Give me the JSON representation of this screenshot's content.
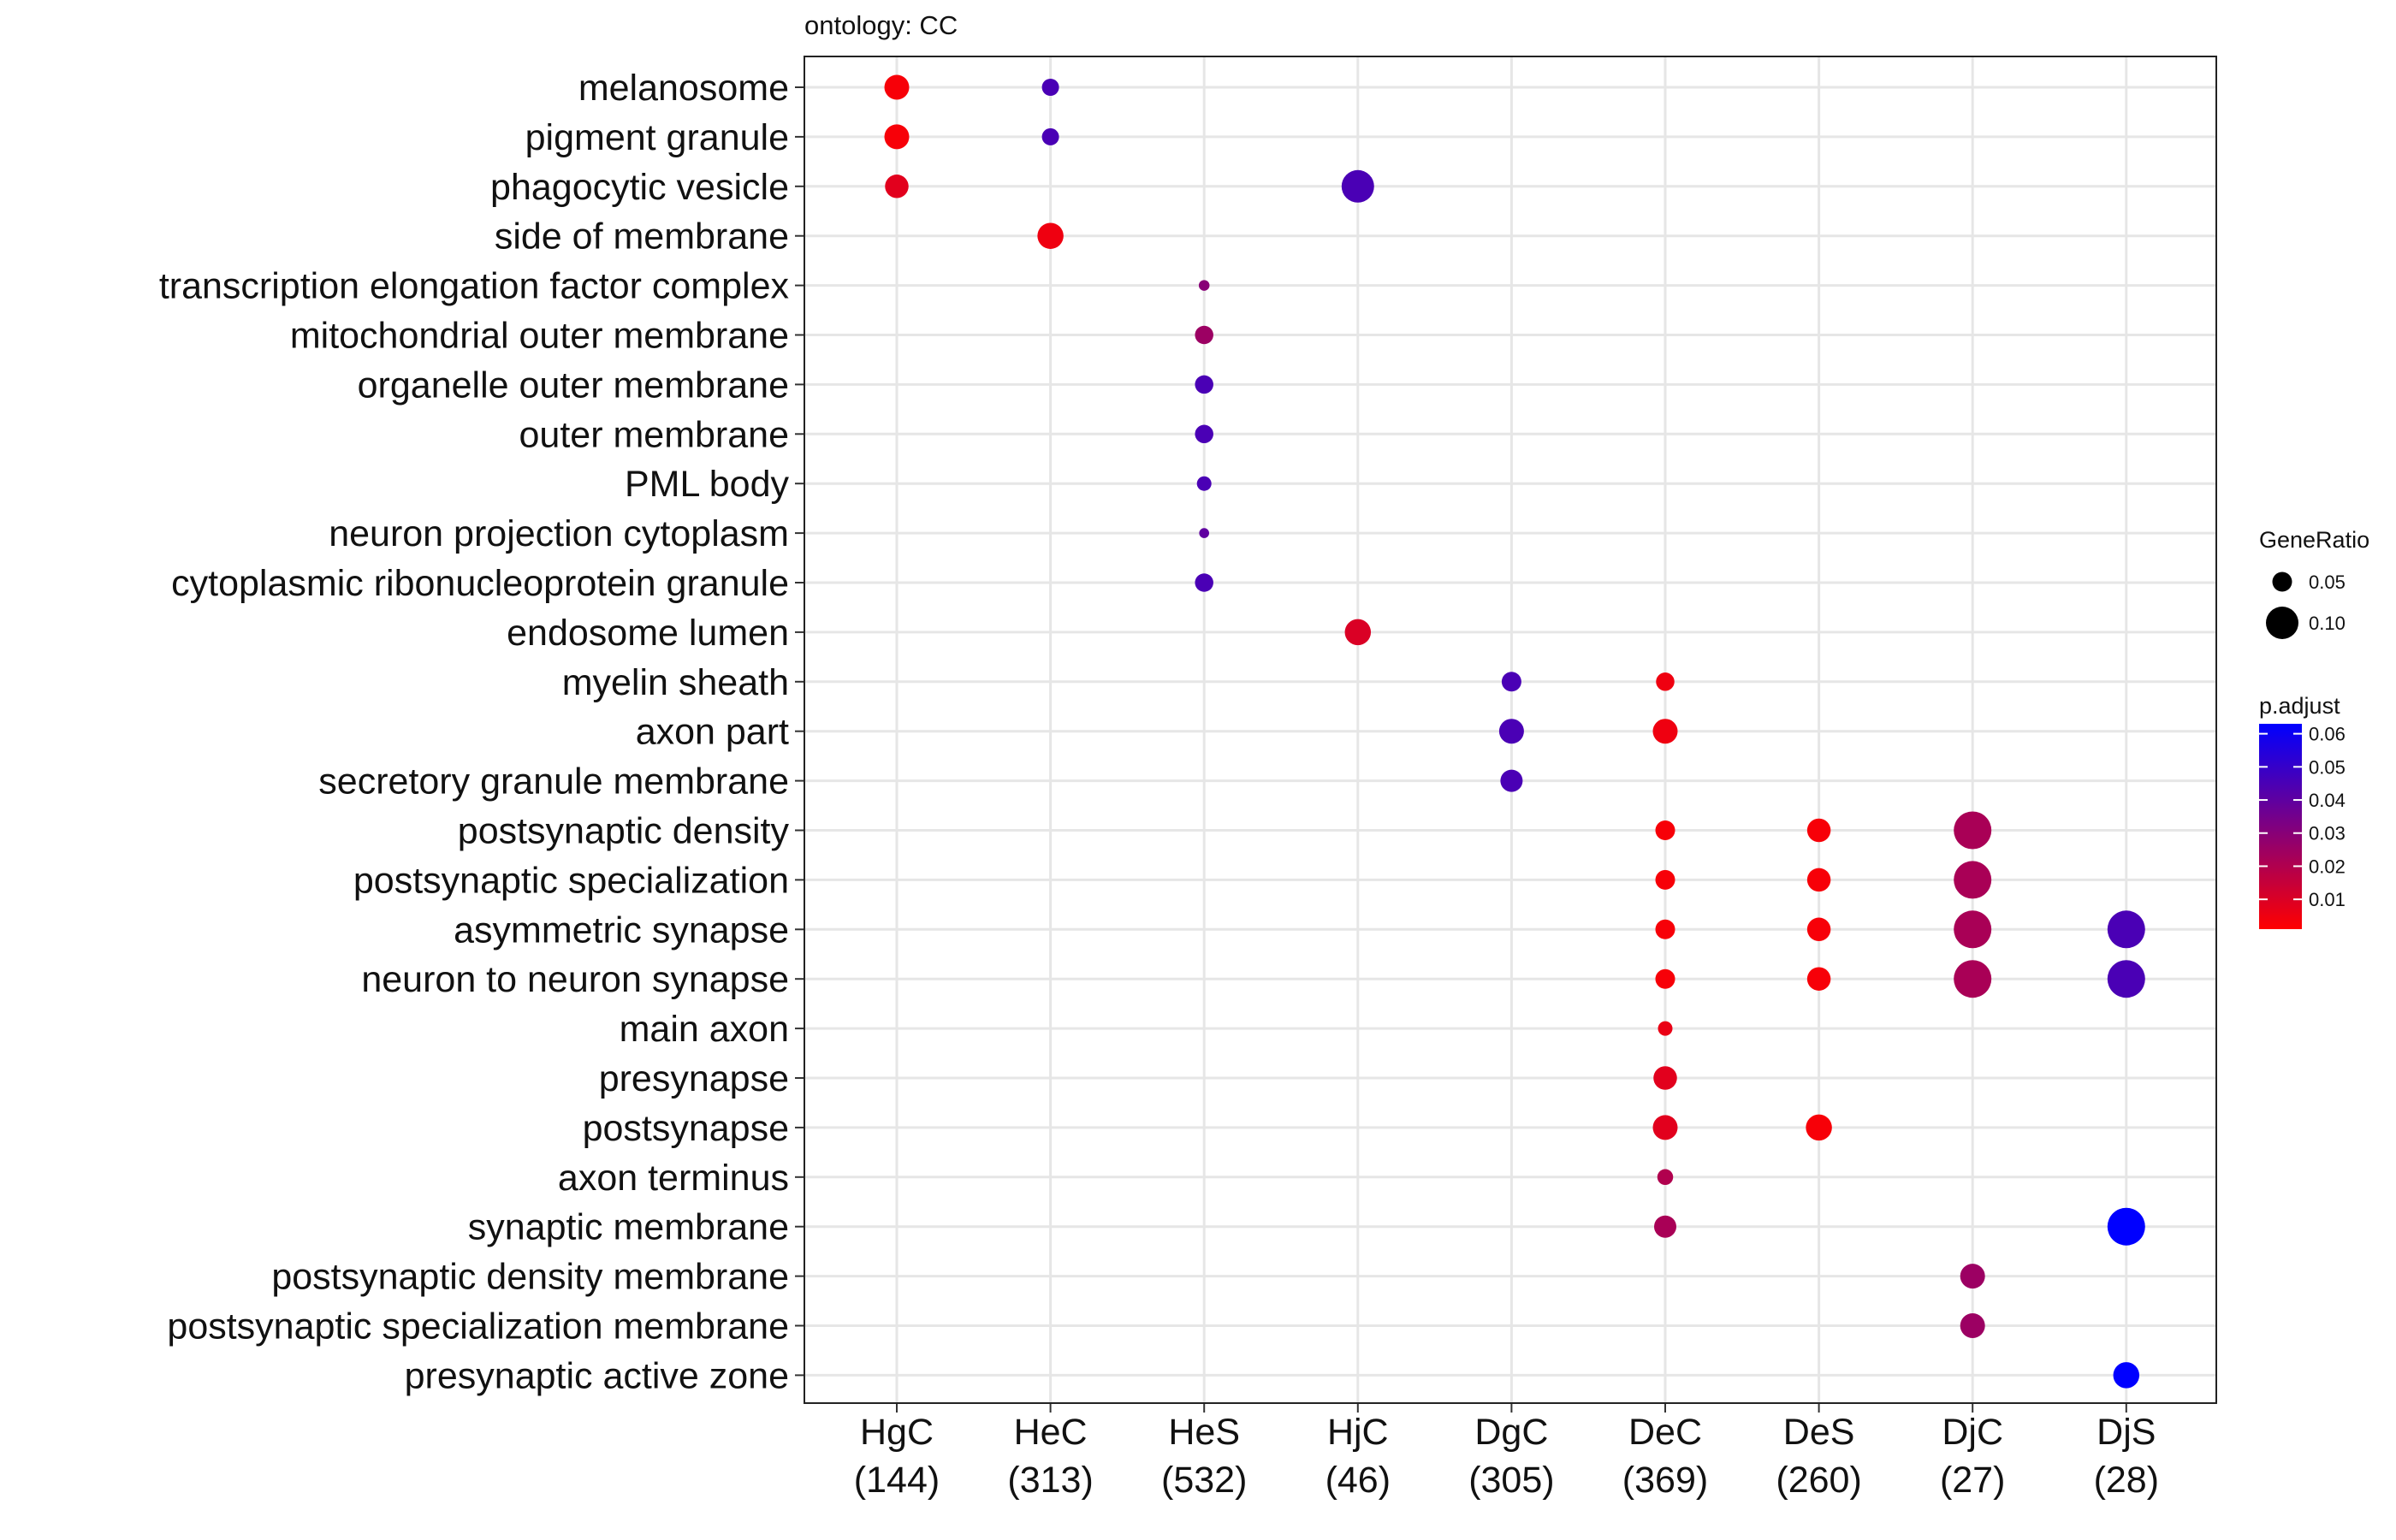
{
  "chart_data": {
    "type": "scatter",
    "subtitle": "ontology: CC",
    "x_categories": [
      "HgC\n(144)",
      "HeC\n(313)",
      "HeS\n(532)",
      "HjC\n(46)",
      "DgC\n(305)",
      "DeC\n(369)",
      "DeS\n(260)",
      "DjC\n(27)",
      "DjS\n(28)"
    ],
    "y_categories": [
      "melanosome",
      "pigment granule",
      "phagocytic vesicle",
      "side of membrane",
      "transcription elongation factor complex",
      "mitochondrial outer membrane",
      "organelle outer membrane",
      "outer membrane",
      "PML body",
      "neuron projection cytoplasm",
      "cytoplasmic ribonucleoprotein granule",
      "endosome lumen",
      "myelin sheath",
      "axon part",
      "secretory granule membrane",
      "postsynaptic density",
      "postsynaptic specialization",
      "asymmetric synapse",
      "neuron to neuron synapse",
      "main axon",
      "presynapse",
      "postsynapse",
      "axon terminus",
      "synaptic membrane",
      "postsynaptic density membrane",
      "postsynaptic specialization membrane",
      "presynaptic active zone"
    ],
    "points": [
      {
        "x": "HgC",
        "y": "melanosome",
        "GeneRatio": 0.07,
        "p_adjust": 0.003
      },
      {
        "x": "HgC",
        "y": "pigment granule",
        "GeneRatio": 0.07,
        "p_adjust": 0.003
      },
      {
        "x": "HgC",
        "y": "phagocytic vesicle",
        "GeneRatio": 0.065,
        "p_adjust": 0.008
      },
      {
        "x": "HeC",
        "y": "melanosome",
        "GeneRatio": 0.04,
        "p_adjust": 0.045
      },
      {
        "x": "HeC",
        "y": "pigment granule",
        "GeneRatio": 0.04,
        "p_adjust": 0.045
      },
      {
        "x": "HeC",
        "y": "side of membrane",
        "GeneRatio": 0.075,
        "p_adjust": 0.005
      },
      {
        "x": "HeS",
        "y": "transcription elongation factor complex",
        "GeneRatio": 0.015,
        "p_adjust": 0.03
      },
      {
        "x": "HeS",
        "y": "mitochondrial outer membrane",
        "GeneRatio": 0.045,
        "p_adjust": 0.025
      },
      {
        "x": "HeS",
        "y": "organelle outer membrane",
        "GeneRatio": 0.045,
        "p_adjust": 0.045
      },
      {
        "x": "HeS",
        "y": "outer membrane",
        "GeneRatio": 0.045,
        "p_adjust": 0.045
      },
      {
        "x": "HeS",
        "y": "PML body",
        "GeneRatio": 0.03,
        "p_adjust": 0.045
      },
      {
        "x": "HeS",
        "y": "neuron projection cytoplasm",
        "GeneRatio": 0.012,
        "p_adjust": 0.04
      },
      {
        "x": "HeS",
        "y": "cytoplasmic ribonucleoprotein granule",
        "GeneRatio": 0.045,
        "p_adjust": 0.045
      },
      {
        "x": "HjC",
        "y": "phagocytic vesicle",
        "GeneRatio": 0.1,
        "p_adjust": 0.045
      },
      {
        "x": "HjC",
        "y": "endosome lumen",
        "GeneRatio": 0.075,
        "p_adjust": 0.01
      },
      {
        "x": "DgC",
        "y": "myelin sheath",
        "GeneRatio": 0.05,
        "p_adjust": 0.045
      },
      {
        "x": "DgC",
        "y": "axon part",
        "GeneRatio": 0.07,
        "p_adjust": 0.045
      },
      {
        "x": "DgC",
        "y": "secretory granule membrane",
        "GeneRatio": 0.06,
        "p_adjust": 0.045
      },
      {
        "x": "DeC",
        "y": "myelin sheath",
        "GeneRatio": 0.045,
        "p_adjust": 0.005
      },
      {
        "x": "DeC",
        "y": "axon part",
        "GeneRatio": 0.07,
        "p_adjust": 0.005
      },
      {
        "x": "DeC",
        "y": "postsynaptic density",
        "GeneRatio": 0.05,
        "p_adjust": 0.003
      },
      {
        "x": "DeC",
        "y": "postsynaptic specialization",
        "GeneRatio": 0.05,
        "p_adjust": 0.003
      },
      {
        "x": "DeC",
        "y": "asymmetric synapse",
        "GeneRatio": 0.05,
        "p_adjust": 0.003
      },
      {
        "x": "DeC",
        "y": "neuron to neuron synapse",
        "GeneRatio": 0.05,
        "p_adjust": 0.003
      },
      {
        "x": "DeC",
        "y": "main axon",
        "GeneRatio": 0.03,
        "p_adjust": 0.006
      },
      {
        "x": "DeC",
        "y": "presynapse",
        "GeneRatio": 0.065,
        "p_adjust": 0.008
      },
      {
        "x": "DeC",
        "y": "postsynapse",
        "GeneRatio": 0.07,
        "p_adjust": 0.008
      },
      {
        "x": "DeC",
        "y": "axon terminus",
        "GeneRatio": 0.035,
        "p_adjust": 0.02
      },
      {
        "x": "DeC",
        "y": "synaptic membrane",
        "GeneRatio": 0.06,
        "p_adjust": 0.022
      },
      {
        "x": "DeS",
        "y": "postsynaptic density",
        "GeneRatio": 0.065,
        "p_adjust": 0.003
      },
      {
        "x": "DeS",
        "y": "postsynaptic specialization",
        "GeneRatio": 0.065,
        "p_adjust": 0.003
      },
      {
        "x": "DeS",
        "y": "asymmetric synapse",
        "GeneRatio": 0.065,
        "p_adjust": 0.003
      },
      {
        "x": "DeS",
        "y": "neuron to neuron synapse",
        "GeneRatio": 0.065,
        "p_adjust": 0.003
      },
      {
        "x": "DeS",
        "y": "postsynapse",
        "GeneRatio": 0.075,
        "p_adjust": 0.003
      },
      {
        "x": "DjC",
        "y": "postsynaptic density",
        "GeneRatio": 0.12,
        "p_adjust": 0.022
      },
      {
        "x": "DjC",
        "y": "postsynaptic specialization",
        "GeneRatio": 0.12,
        "p_adjust": 0.022
      },
      {
        "x": "DjC",
        "y": "asymmetric synapse",
        "GeneRatio": 0.12,
        "p_adjust": 0.022
      },
      {
        "x": "DjC",
        "y": "neuron to neuron synapse",
        "GeneRatio": 0.12,
        "p_adjust": 0.022
      },
      {
        "x": "DjC",
        "y": "postsynaptic density membrane",
        "GeneRatio": 0.07,
        "p_adjust": 0.025
      },
      {
        "x": "DjC",
        "y": "postsynaptic specialization membrane",
        "GeneRatio": 0.07,
        "p_adjust": 0.025
      },
      {
        "x": "DjS",
        "y": "asymmetric synapse",
        "GeneRatio": 0.12,
        "p_adjust": 0.045
      },
      {
        "x": "DjS",
        "y": "neuron to neuron synapse",
        "GeneRatio": 0.12,
        "p_adjust": 0.045
      },
      {
        "x": "DjS",
        "y": "synaptic membrane",
        "GeneRatio": 0.12,
        "p_adjust": 0.063
      },
      {
        "x": "DjS",
        "y": "presynaptic active zone",
        "GeneRatio": 0.075,
        "p_adjust": 0.063
      }
    ],
    "size_legend": {
      "title": "GeneRatio",
      "values": [
        0.05,
        0.1
      ],
      "labels": [
        "0.05",
        "0.10"
      ]
    },
    "color_legend": {
      "title": "p.adjust",
      "min": 0.001,
      "max": 0.063,
      "ticks": [
        0.06,
        0.05,
        0.04,
        0.03,
        0.02,
        0.01
      ],
      "tick_labels": [
        "0.06",
        "0.05",
        "0.04",
        "0.03",
        "0.02",
        "0.01"
      ],
      "low_color": "#ff0000",
      "high_color": "#0000ff"
    },
    "grid": true,
    "legend_position": "right"
  }
}
